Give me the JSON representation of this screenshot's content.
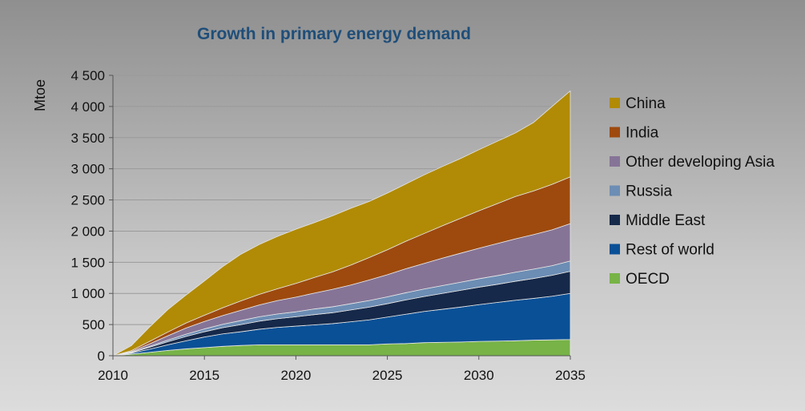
{
  "chart_data": {
    "type": "area",
    "stacked": true,
    "title": "Growth in primary energy demand",
    "xlabel": "",
    "ylabel": "Mtoe",
    "xlim": [
      2010,
      2035
    ],
    "ylim": [
      0,
      4500
    ],
    "x_ticks": [
      "2010",
      "2015",
      "2020",
      "2025",
      "2030",
      "2035"
    ],
    "y_ticks": [
      "0",
      "500",
      "1 000",
      "1 500",
      "2 000",
      "2 500",
      "3 000",
      "3 500",
      "4 000",
      "4 500"
    ],
    "x": [
      2010,
      2011,
      2012,
      2013,
      2014,
      2015,
      2016,
      2017,
      2018,
      2019,
      2020,
      2021,
      2022,
      2023,
      2024,
      2025,
      2026,
      2027,
      2028,
      2029,
      2030,
      2031,
      2032,
      2033,
      2034,
      2035
    ],
    "series": [
      {
        "name": "OECD",
        "color": "#77b347",
        "values": [
          0,
          25,
          55,
          85,
          110,
          130,
          150,
          165,
          175,
          175,
          175,
          175,
          175,
          175,
          175,
          190,
          195,
          210,
          215,
          220,
          230,
          235,
          240,
          250,
          255,
          260
        ]
      },
      {
        "name": "Rest of world",
        "color": "#0a5096",
        "values": [
          0,
          15,
          50,
          90,
          130,
          170,
          200,
          220,
          250,
          280,
          300,
          320,
          340,
          370,
          400,
          430,
          470,
          500,
          530,
          560,
          590,
          620,
          650,
          670,
          700,
          740
        ]
      },
      {
        "name": "Middle East",
        "color": "#16294a",
        "values": [
          0,
          10,
          30,
          50,
          70,
          85,
          100,
          115,
          130,
          140,
          150,
          165,
          175,
          190,
          205,
          215,
          230,
          240,
          255,
          270,
          280,
          290,
          305,
          320,
          335,
          355
        ]
      },
      {
        "name": "Russia",
        "color": "#6c8db4",
        "values": [
          0,
          5,
          15,
          25,
          35,
          45,
          55,
          65,
          70,
          75,
          80,
          90,
          95,
          100,
          105,
          110,
          115,
          120,
          125,
          130,
          135,
          140,
          145,
          150,
          155,
          165
        ]
      },
      {
        "name": "Other developing Asia",
        "color": "#867497",
        "values": [
          0,
          10,
          40,
          70,
          100,
          120,
          140,
          165,
          190,
          215,
          235,
          255,
          280,
          300,
          330,
          355,
          385,
          410,
          440,
          465,
          490,
          515,
          535,
          555,
          575,
          600
        ]
      },
      {
        "name": "India",
        "color": "#9e4a0e",
        "values": [
          0,
          15,
          40,
          60,
          80,
          100,
          125,
          150,
          170,
          190,
          220,
          250,
          280,
          320,
          360,
          400,
          440,
          480,
          520,
          560,
          600,
          640,
          680,
          700,
          730,
          750
        ]
      },
      {
        "name": "China",
        "color": "#b18b06",
        "values": [
          0,
          80,
          230,
          360,
          450,
          550,
          660,
          750,
          800,
          840,
          870,
          880,
          900,
          910,
          900,
          910,
          920,
          940,
          950,
          960,
          980,
          1000,
          1020,
          1100,
          1250,
          1380
        ]
      }
    ],
    "legend_order": [
      "China",
      "India",
      "Other developing Asia",
      "Russia",
      "Middle East",
      "Rest of world",
      "OECD"
    ],
    "legend_position": "right",
    "grid": true
  }
}
